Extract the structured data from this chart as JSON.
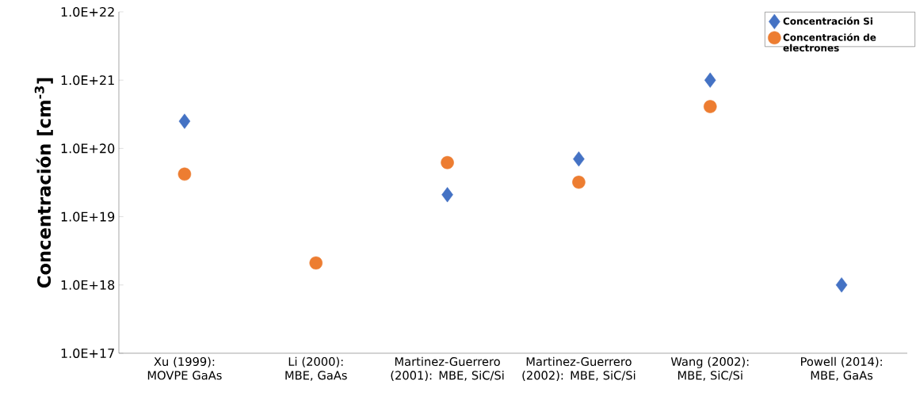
{
  "chart_data": {
    "type": "scatter",
    "ylabel": "Concentración [cm$^{-3}$]",
    "categories": [
      "Xu (1999): MOVPE GaAs",
      "Li (2000): MBE, GaAs",
      "Martinez-Guerrero (2001): MBE, SiC/Si",
      "Martinez-Guerrero (2002): MBE, SiC/Si",
      "Wang (2002): MBE, SiC/Si",
      "Powell (2014): MBE, GaAs"
    ],
    "series": [
      {
        "name": "Concentración Si",
        "color": "#4472c4",
        "marker": "diamond",
        "values": [
          2.5e+20,
          null,
          2.1e+19,
          7e+19,
          1e+21,
          1e+18
        ]
      },
      {
        "name": "Concentración de electrones",
        "color": "#ed7d31",
        "marker": "circle",
        "values": [
          4.2e+19,
          2.1e+18,
          6.2e+19,
          3.2e+19,
          4.1e+20,
          null
        ]
      }
    ],
    "log": "y",
    "ylim": [
      1e+17,
      1e+22
    ],
    "yticks": [
      {
        "value": 1e+17,
        "label": "1.0E+17"
      },
      {
        "value": 1e+18,
        "label": "1.0E+18"
      },
      {
        "value": 1e+19,
        "label": "1.0E+19"
      },
      {
        "value": 1e+20,
        "label": "1.0E+20"
      },
      {
        "value": 1e+21,
        "label": "1.0E+21"
      },
      {
        "value": 1e+22,
        "label": "1.0E+22"
      }
    ],
    "grid": false,
    "legend": "top right"
  }
}
